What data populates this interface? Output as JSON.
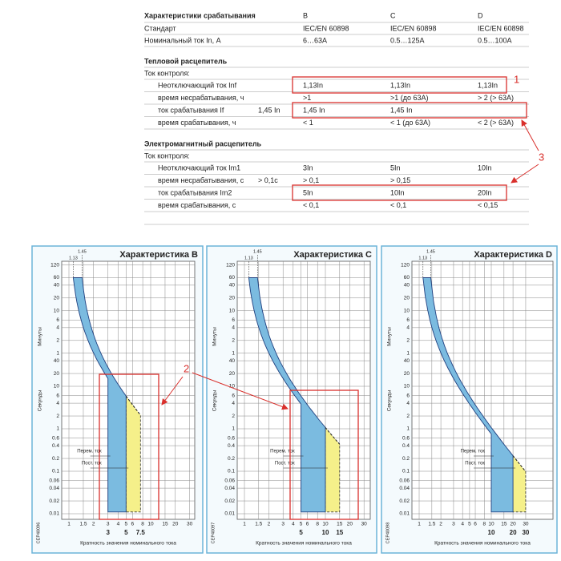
{
  "table": {
    "title": "Характеристики срабатывания",
    "columns": [
      "B",
      "C",
      "D"
    ],
    "general": [
      {
        "label": "Стандарт",
        "cells": [
          "IEC/EN 60898",
          "IEC/EN 60898",
          "IEC/EN 60898"
        ]
      },
      {
        "label": "Номинальный ток In, А",
        "cells": [
          "6…63А",
          "0.5…125А",
          "0.5…100А"
        ]
      }
    ],
    "sections": [
      {
        "title": "Тепловой расцепитель",
        "control": "Ток контроля:",
        "rows": [
          {
            "label": "Неотключающий ток  Inf",
            "cells": [
              "1,13In",
              "1,13In",
              "1,13In"
            ]
          },
          {
            "label": "время несрабатывания, ч",
            "cells": [
              ">1",
              ">1 (до 63А)",
              "> 2 (> 63А)"
            ]
          },
          {
            "label": "ток срабатывания  If",
            "note": "1,45 In",
            "cells": [
              "1,45 In",
              "1,45 In"
            ]
          },
          {
            "label": "время срабатывания, ч",
            "cells": [
              "< 1",
              "< 1 (до 63А)",
              "< 2 (> 63А)"
            ]
          }
        ]
      },
      {
        "title": "Электромагнитный расцепитель",
        "control": "Ток контроля:",
        "rows": [
          {
            "label": "Неотключающий ток Im1",
            "cells": [
              "3In",
              "5In",
              "10In"
            ]
          },
          {
            "label": "время несрабатывания, с",
            "note": "> 0,1с",
            "cells": [
              "> 0,1",
              "> 0,15"
            ]
          },
          {
            "label": "ток срабатывания Im2",
            "cells": [
              "5In",
              "10In",
              "20In"
            ]
          },
          {
            "label": "время срабатывания, с",
            "cells": [
              "< 0,1",
              "< 0,1",
              "< 0,15"
            ]
          }
        ]
      }
    ]
  },
  "markers": [
    "1",
    "2",
    "3"
  ],
  "axis": {
    "seconds": "Секунды",
    "minutes": "Минуты",
    "x": "Кратность значения номинального тока",
    "mark_low": "1.13",
    "mark_high": "1.45",
    "ac": "Перем. ток",
    "dc": "Пост. ток"
  },
  "charts": [
    {
      "title": "Характеристика B",
      "code": "CEP40096",
      "x_ticks": [
        1,
        1.5,
        2,
        3,
        4,
        5,
        6,
        8,
        10,
        15,
        20,
        30
      ],
      "x_bold": [
        3,
        5,
        7.5
      ],
      "sec_ticks": [
        40,
        20,
        10,
        6,
        4,
        2,
        1,
        0.6,
        0.4,
        0.2,
        0.1,
        0.06,
        0.04,
        0.02,
        0.01
      ],
      "min_ticks": [
        120,
        60,
        40,
        20,
        10,
        6,
        4,
        2,
        1
      ]
    },
    {
      "title": "Характеристика C",
      "code": "CEP40097",
      "x_ticks": [
        1,
        1.5,
        2,
        3,
        4,
        5,
        6,
        8,
        10,
        15,
        20,
        30
      ],
      "x_bold": [
        5,
        10,
        15
      ],
      "sec_ticks": [
        40,
        20,
        10,
        6,
        4,
        2,
        1,
        0.6,
        0.4,
        0.2,
        0.1,
        0.06,
        0.04,
        0.02,
        0.01
      ],
      "min_ticks": [
        120,
        60,
        40,
        20,
        10,
        6,
        4,
        2,
        1
      ]
    },
    {
      "title": "Характеристика D",
      "code": "CEP40098",
      "x_ticks": [
        1,
        1.5,
        2,
        3,
        4,
        5,
        6,
        8,
        10,
        15,
        20,
        30
      ],
      "x_bold": [
        10,
        20,
        30
      ],
      "sec_ticks": [
        40,
        20,
        10,
        6,
        4,
        2,
        1,
        0.6,
        0.4,
        0.2,
        0.1,
        0.06,
        0.04,
        0.02,
        0.01
      ],
      "min_ticks": [
        120,
        60,
        40,
        20,
        10,
        6,
        4,
        2,
        1
      ]
    }
  ]
}
